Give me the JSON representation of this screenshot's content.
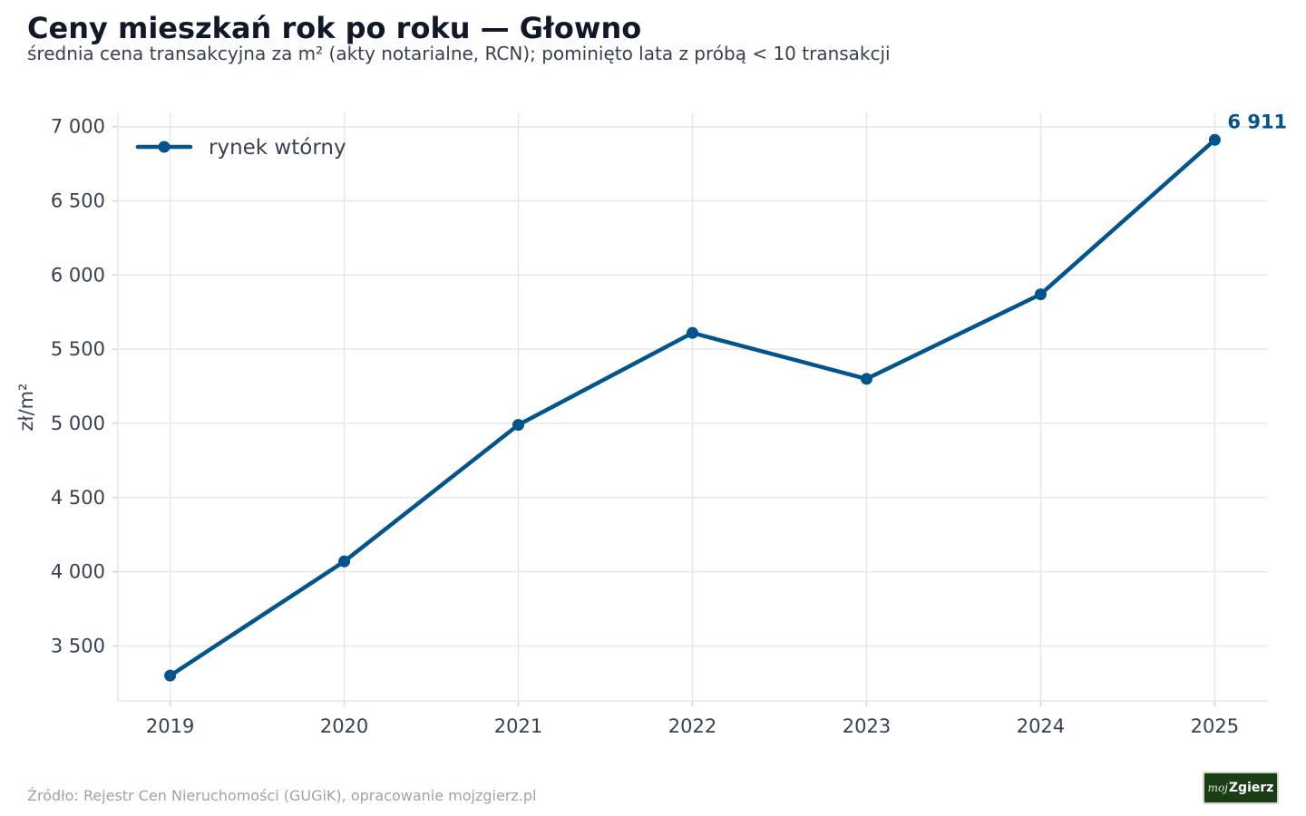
{
  "title": "Ceny mieszkań rok po roku — Głowno",
  "subtitle": "średnia cena transakcyjna za m² (akty notarialne, RCN); pominięto lata z próbą < 10 transakcji",
  "source": "Źródło: Rejestr Cen Nieruchomości (GUGiK), opracowanie mojzgierz.pl",
  "logo": {
    "small": "moj",
    "big": "Zgierz"
  },
  "chart_data": {
    "type": "line",
    "x": [
      2019,
      2020,
      2021,
      2022,
      2023,
      2024,
      2025
    ],
    "series": [
      {
        "name": "rynek wtórny",
        "values": [
          3300,
          4070,
          4990,
          5610,
          5300,
          5870,
          6911
        ],
        "color": "#02548c"
      }
    ],
    "ylabel": "zł/m²",
    "xlim": [
      2018.7,
      2025.3
    ],
    "ylim": [
      3130,
      7090
    ],
    "yticks": [
      3500,
      4000,
      4500,
      5000,
      5500,
      6000,
      6500,
      7000
    ],
    "ytick_labels": [
      "3 500",
      "4 000",
      "4 500",
      "5 000",
      "5 500",
      "6 000",
      "6 500",
      "7 000"
    ],
    "xticks": [
      2019,
      2020,
      2021,
      2022,
      2023,
      2024,
      2025
    ],
    "xtick_labels": [
      "2019",
      "2020",
      "2021",
      "2022",
      "2023",
      "2024",
      "2025"
    ],
    "annotation": {
      "x": 2025,
      "y": 6911,
      "text": "6 911"
    },
    "grid": true,
    "legend": "top-left",
    "colors": {
      "line": "#02548c",
      "grid": "#e5e7eb",
      "tick_text": "#374151"
    }
  }
}
